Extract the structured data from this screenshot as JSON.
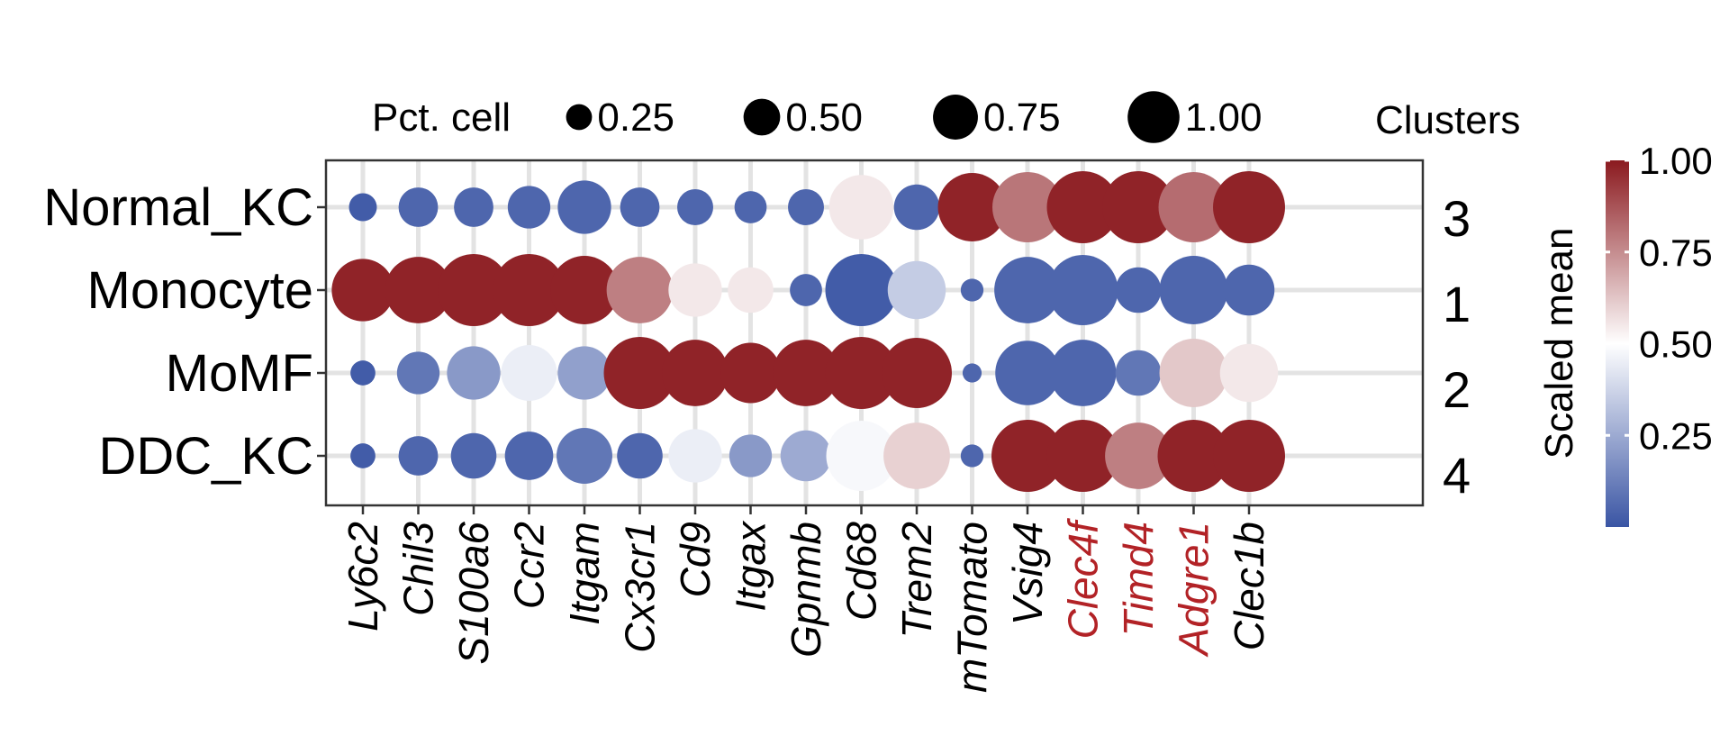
{
  "chart_data": {
    "type": "dotplot",
    "genes": [
      {
        "name": "Ly6c2",
        "highlight": false
      },
      {
        "name": "Chil3",
        "highlight": false
      },
      {
        "name": "S100a6",
        "highlight": false
      },
      {
        "name": "Ccr2",
        "highlight": false
      },
      {
        "name": "Itgam",
        "highlight": false
      },
      {
        "name": "Cx3cr1",
        "highlight": false
      },
      {
        "name": "Cd9",
        "highlight": false
      },
      {
        "name": "Itgax",
        "highlight": false
      },
      {
        "name": "Gpnmb",
        "highlight": false
      },
      {
        "name": "Cd68",
        "highlight": false
      },
      {
        "name": "Trem2",
        "highlight": false
      },
      {
        "name": "mTomato",
        "highlight": false
      },
      {
        "name": "Vsig4",
        "highlight": false
      },
      {
        "name": "Clec4f",
        "highlight": true
      },
      {
        "name": "Timd4",
        "highlight": true
      },
      {
        "name": "Adgre1",
        "highlight": true
      },
      {
        "name": "Clec1b",
        "highlight": false
      }
    ],
    "rows": [
      {
        "name": "Normal_KC",
        "cluster": "3",
        "pct": [
          0.15,
          0.3,
          0.3,
          0.35,
          0.55,
          0.3,
          0.25,
          0.2,
          0.25,
          0.8,
          0.4,
          0.9,
          0.95,
          1.0,
          1.0,
          0.95,
          1.0
        ],
        "mean": [
          0.02,
          0.05,
          0.05,
          0.05,
          0.05,
          0.05,
          0.05,
          0.05,
          0.05,
          0.55,
          0.05,
          0.98,
          0.8,
          0.98,
          0.98,
          0.82,
          0.98
        ]
      },
      {
        "name": "Monocyte",
        "cluster": "1",
        "pct": [
          0.75,
          0.85,
          1.0,
          1.0,
          0.9,
          0.85,
          0.55,
          0.4,
          0.2,
          1.0,
          0.65,
          0.1,
          0.85,
          0.95,
          0.4,
          0.9,
          0.5
        ],
        "mean": [
          0.98,
          0.98,
          0.98,
          0.98,
          0.98,
          0.78,
          0.55,
          0.55,
          0.05,
          0.02,
          0.35,
          0.05,
          0.05,
          0.05,
          0.05,
          0.05,
          0.05
        ]
      },
      {
        "name": "MoMF",
        "cluster": "2",
        "pct": [
          0.12,
          0.35,
          0.55,
          0.6,
          0.55,
          1.0,
          0.85,
          0.7,
          0.85,
          1.0,
          0.95,
          0.07,
          0.8,
          0.85,
          0.4,
          0.9,
          0.65
        ],
        "mean": [
          0.02,
          0.1,
          0.2,
          0.45,
          0.22,
          0.98,
          0.98,
          0.98,
          0.98,
          0.98,
          0.98,
          0.05,
          0.05,
          0.05,
          0.1,
          0.62,
          0.55
        ]
      },
      {
        "name": "DDC_KC",
        "cluster": "4",
        "pct": [
          0.12,
          0.3,
          0.4,
          0.45,
          0.6,
          0.4,
          0.55,
          0.35,
          0.5,
          0.95,
          0.85,
          0.1,
          1.0,
          1.0,
          0.85,
          1.0,
          1.0
        ],
        "mean": [
          0.02,
          0.05,
          0.05,
          0.05,
          0.1,
          0.05,
          0.45,
          0.2,
          0.25,
          0.48,
          0.6,
          0.05,
          0.98,
          0.98,
          0.78,
          0.98,
          0.98
        ]
      }
    ],
    "size_legend": {
      "title": "Pct. cell",
      "values": [
        0.25,
        0.5,
        0.75,
        1.0
      ],
      "labels": [
        "0.25",
        "0.50",
        "0.75",
        "1.00"
      ]
    },
    "color_legend": {
      "title": "Scaled mean",
      "range": [
        0,
        1
      ],
      "ticks": [
        0.25,
        0.5,
        0.75,
        1.0
      ],
      "labels": [
        "0.25",
        "0.50",
        "0.75",
        "1.00"
      ],
      "colors": [
        "#3a55a4",
        "#ffffff",
        "#8b1a1f"
      ]
    },
    "cluster_title": "Clusters",
    "grid": true,
    "colors": {
      "highlight_label": "#b22226",
      "grid": "#e3e3e3",
      "frame": "#333333"
    }
  }
}
